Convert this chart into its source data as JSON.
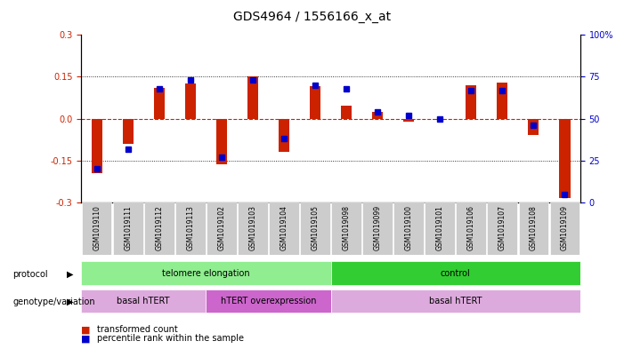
{
  "title": "GDS4964 / 1556166_x_at",
  "samples": [
    "GSM1019110",
    "GSM1019111",
    "GSM1019112",
    "GSM1019113",
    "GSM1019102",
    "GSM1019103",
    "GSM1019104",
    "GSM1019105",
    "GSM1019098",
    "GSM1019099",
    "GSM1019100",
    "GSM1019101",
    "GSM1019106",
    "GSM1019107",
    "GSM1019108",
    "GSM1019109"
  ],
  "transformed_count": [
    -0.195,
    -0.09,
    0.11,
    0.125,
    -0.165,
    0.15,
    -0.12,
    0.115,
    0.045,
    0.025,
    -0.01,
    -0.005,
    0.12,
    0.13,
    -0.06,
    -0.285
  ],
  "percentile_rank": [
    20,
    32,
    68,
    73,
    27,
    73,
    38,
    70,
    68,
    54,
    52,
    50,
    67,
    67,
    46,
    5
  ],
  "ylim_left": [
    -0.3,
    0.3
  ],
  "ylim_right": [
    0,
    100
  ],
  "yticks_left": [
    -0.3,
    -0.15,
    0.0,
    0.15,
    0.3
  ],
  "yticks_right": [
    0,
    25,
    50,
    75,
    100
  ],
  "bar_color": "#cc2200",
  "dot_color": "#0000cc",
  "hline_color": "#cc2200",
  "dotted_color": "#000000",
  "protocol_groups": [
    {
      "label": "telomere elongation",
      "start": 0,
      "end": 7,
      "color": "#90ee90"
    },
    {
      "label": "control",
      "start": 8,
      "end": 15,
      "color": "#32cd32"
    }
  ],
  "genotype_groups": [
    {
      "label": "basal hTERT",
      "start": 0,
      "end": 3,
      "color": "#ddaadd"
    },
    {
      "label": "hTERT overexpression",
      "start": 4,
      "end": 7,
      "color": "#cc66cc"
    },
    {
      "label": "basal hTERT",
      "start": 8,
      "end": 15,
      "color": "#ddaadd"
    }
  ],
  "protocol_label": "protocol",
  "genotype_label": "genotype/variation",
  "legend_entries": [
    "transformed count",
    "percentile rank within the sample"
  ],
  "background_color": "#ffffff",
  "plot_bg_color": "#ffffff",
  "tick_label_bg": "#cccccc"
}
